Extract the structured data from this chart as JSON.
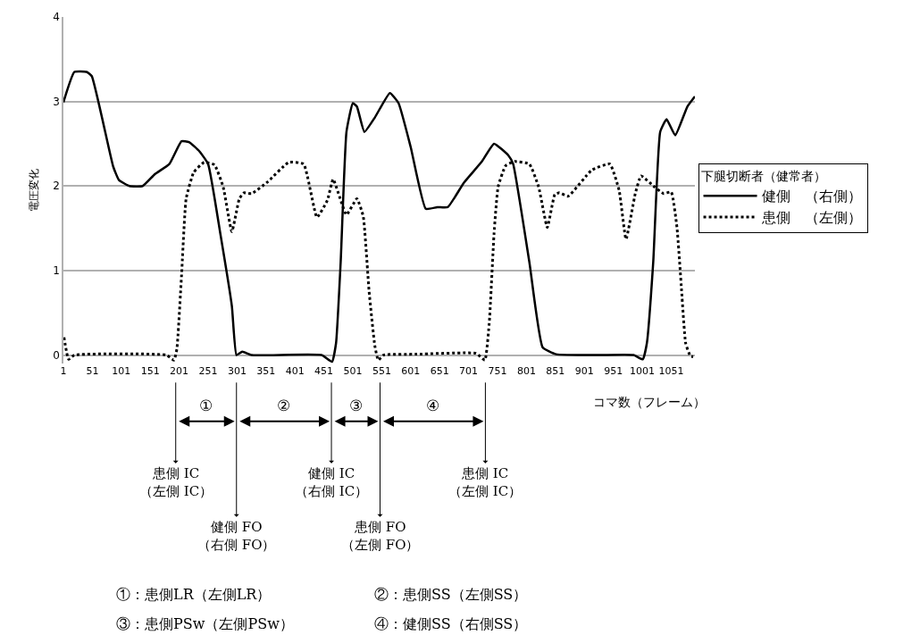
{
  "chart_data": {
    "type": "line",
    "xlabel": "コマ数（フレーム）",
    "ylabel": "電圧変化",
    "legend_title": "下腿切断者（健常者）",
    "xlim": [
      1,
      1092
    ],
    "xticks": [
      1,
      51,
      101,
      151,
      201,
      251,
      301,
      351,
      401,
      451,
      501,
      551,
      601,
      651,
      701,
      751,
      801,
      851,
      901,
      951,
      1001,
      1051
    ],
    "ylim": [
      -0.1,
      4
    ],
    "yticks": [
      0,
      1,
      2,
      3,
      4
    ],
    "grid": "y",
    "legend": "right",
    "marker": "none",
    "series": [
      {
        "name": "健側　（右側）",
        "color": "#000000",
        "line_style": "solid",
        "x": [
          1,
          20,
          41,
          50,
          87,
          97,
          115,
          138,
          159,
          184,
          205,
          218,
          236,
          251,
          272,
          292,
          300,
          310,
          326,
          447,
          465,
          472,
          480,
          490,
          501,
          508,
          521,
          539,
          565,
          580,
          601,
          627,
          647,
          665,
          693,
          724,
          745,
          770,
          778,
          806,
          829,
          852,
          925,
          986,
          1002,
          1009,
          1020,
          1032,
          1043,
          1058,
          1079,
          1092
        ],
        "values": [
          2.99,
          3.35,
          3.35,
          3.3,
          2.23,
          2.07,
          2.0,
          2.0,
          2.14,
          2.26,
          2.53,
          2.52,
          2.41,
          2.26,
          1.44,
          0.58,
          0,
          0.04,
          0,
          0,
          -0.08,
          0.14,
          1.1,
          2.64,
          2.98,
          2.94,
          2.64,
          2.81,
          3.1,
          2.98,
          2.46,
          1.73,
          1.75,
          1.75,
          2.04,
          2.29,
          2.5,
          2.36,
          2.26,
          1.1,
          0.09,
          0.01,
          0,
          0,
          -0.05,
          0.14,
          1.1,
          2.64,
          2.79,
          2.6,
          2.94,
          3.06
        ]
      },
      {
        "name": "患側　（左側）",
        "color": "#000000",
        "line_style": "dotted",
        "x": [
          2,
          10,
          20,
          179,
          192,
          197,
          205,
          213,
          226,
          244,
          262,
          277,
          292,
          305,
          313,
          326,
          354,
          390,
          416,
          439,
          457,
          467,
          490,
          508,
          519,
          529,
          539,
          545,
          554,
          611,
          714,
          729,
          737,
          745,
          752,
          765,
          781,
          806,
          822,
          837,
          850,
          858,
          873,
          914,
          945,
          961,
          973,
          989,
          999,
          1022,
          1038,
          1051,
          1061,
          1069,
          1076,
          1084,
          1089
        ],
        "values": [
          0.21,
          -0.05,
          0,
          0,
          -0.06,
          0.07,
          0.93,
          1.85,
          2.16,
          2.28,
          2.25,
          1.99,
          1.46,
          1.85,
          1.92,
          1.91,
          2.05,
          2.28,
          2.26,
          1.63,
          1.83,
          2.08,
          1.66,
          1.85,
          1.64,
          0.76,
          0.11,
          -0.06,
          0,
          0.01,
          0.02,
          -0.06,
          0.41,
          1.44,
          1.99,
          2.24,
          2.29,
          2.26,
          1.99,
          1.51,
          1.9,
          1.92,
          1.88,
          2.19,
          2.26,
          1.95,
          1.37,
          1.91,
          2.12,
          1.99,
          1.91,
          1.93,
          1.51,
          0.76,
          0.14,
          -0.01,
          -0.02
        ]
      }
    ],
    "ref_lines": [
      {
        "axis": "x",
        "value": 195,
        "label": "患側 IC\n（左側 IC）"
      },
      {
        "axis": "x",
        "value": 300,
        "label": "健側 FO\n（右側 FO）"
      },
      {
        "axis": "x",
        "value": 464,
        "label": "健側 IC\n（右側 IC）"
      },
      {
        "axis": "x",
        "value": 548,
        "label": "患側 FO\n（左側 FO）"
      },
      {
        "axis": "x",
        "value": 730,
        "label": "患側 IC\n（左側 IC）"
      }
    ],
    "annotations": [
      "①",
      "②",
      "③",
      "④",
      "①：患側LR（左側LR）",
      "②：患側SS（左側SS）",
      "③：患側PSw（左側PSw）",
      "④：健側SS（右側SS）"
    ]
  }
}
